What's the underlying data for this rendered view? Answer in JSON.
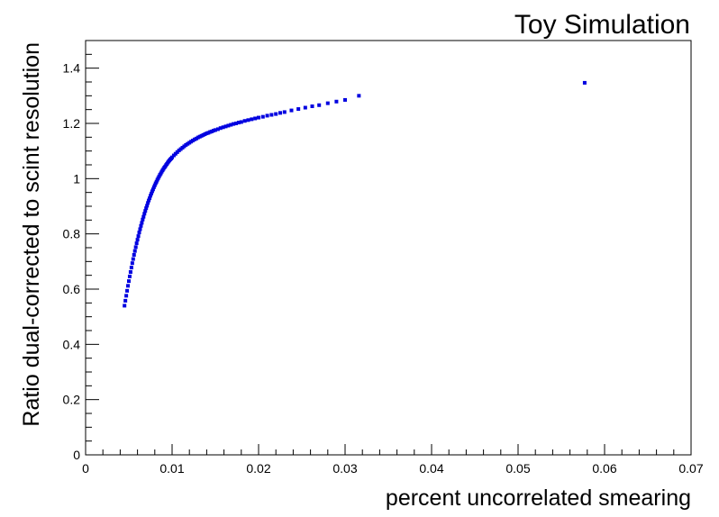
{
  "chart_data": {
    "type": "scatter",
    "title": "Toy Simulation",
    "xlabel": "percent uncorrelated smearing",
    "ylabel": "Ratio dual-corrected to scint resolution",
    "xlim": [
      0,
      0.07
    ],
    "ylim": [
      0,
      1.5
    ],
    "x_ticks": [
      0,
      0.01,
      0.02,
      0.03,
      0.04,
      0.05,
      0.06,
      0.07
    ],
    "x_tick_labels": [
      "0",
      "0.01",
      "0.02",
      "0.03",
      "0.04",
      "0.05",
      "0.06",
      "0.07"
    ],
    "y_ticks": [
      0,
      0.2,
      0.4,
      0.6,
      0.8,
      1.0,
      1.2,
      1.4
    ],
    "y_tick_labels": [
      "0",
      "0.2",
      "0.4",
      "0.6",
      "0.8",
      "1",
      "1.2",
      "1.4"
    ],
    "grid": false,
    "marker_color": "#0000e0",
    "series": [
      {
        "x": [
          0.0045,
          0.0046,
          0.0047,
          0.0048,
          0.0049,
          0.005,
          0.0051,
          0.0052,
          0.0053,
          0.0054,
          0.0055,
          0.0056,
          0.0057,
          0.0058,
          0.0059,
          0.006,
          0.0061,
          0.0062,
          0.0063,
          0.0064,
          0.0065,
          0.0066,
          0.0067,
          0.0068,
          0.0069,
          0.007,
          0.0071,
          0.0072,
          0.0073,
          0.0074,
          0.0075,
          0.0076,
          0.0077,
          0.0078,
          0.0079,
          0.008,
          0.0081,
          0.0082,
          0.0083,
          0.0084,
          0.0085,
          0.0086,
          0.0087,
          0.0088,
          0.0089,
          0.009,
          0.0091,
          0.0092,
          0.0093,
          0.0094,
          0.0095,
          0.0096,
          0.0097,
          0.0098,
          0.0099,
          0.01,
          0.0102,
          0.0104,
          0.0106,
          0.0108,
          0.011,
          0.0112,
          0.0114,
          0.0116,
          0.0118,
          0.012,
          0.0122,
          0.0124,
          0.0126,
          0.0128,
          0.013,
          0.0132,
          0.0134,
          0.0136,
          0.0138,
          0.014,
          0.0142,
          0.0144,
          0.0146,
          0.0148,
          0.015,
          0.0153,
          0.0156,
          0.0159,
          0.0162,
          0.0165,
          0.0168,
          0.0171,
          0.0174,
          0.0177,
          0.018,
          0.0184,
          0.0188,
          0.0192,
          0.0196,
          0.02,
          0.0205,
          0.021,
          0.0215,
          0.022,
          0.0225,
          0.023,
          0.0238,
          0.0246,
          0.0254,
          0.0262,
          0.027,
          0.028,
          0.029,
          0.03,
          0.0316,
          0.0577
        ],
        "y": [
          0.54,
          0.558,
          0.576,
          0.594,
          0.612,
          0.629,
          0.646,
          0.662,
          0.678,
          0.694,
          0.709,
          0.724,
          0.738,
          0.752,
          0.766,
          0.779,
          0.792,
          0.805,
          0.817,
          0.829,
          0.84,
          0.852,
          0.862,
          0.873,
          0.883,
          0.893,
          0.902,
          0.912,
          0.921,
          0.929,
          0.938,
          0.946,
          0.954,
          0.961,
          0.969,
          0.976,
          0.983,
          0.989,
          0.996,
          1.002,
          1.008,
          1.014,
          1.019,
          1.025,
          1.03,
          1.035,
          1.04,
          1.044,
          1.049,
          1.053,
          1.058,
          1.062,
          1.066,
          1.07,
          1.073,
          1.077,
          1.084,
          1.09,
          1.096,
          1.102,
          1.107,
          1.112,
          1.117,
          1.122,
          1.126,
          1.13,
          1.134,
          1.138,
          1.142,
          1.145,
          1.149,
          1.152,
          1.155,
          1.158,
          1.161,
          1.164,
          1.166,
          1.169,
          1.171,
          1.174,
          1.176,
          1.179,
          1.183,
          1.186,
          1.189,
          1.192,
          1.195,
          1.198,
          1.2,
          1.203,
          1.205,
          1.209,
          1.212,
          1.215,
          1.218,
          1.221,
          1.224,
          1.228,
          1.231,
          1.234,
          1.238,
          1.241,
          1.247,
          1.252,
          1.257,
          1.262,
          1.266,
          1.273,
          1.279,
          1.285,
          1.3,
          1.347
        ]
      }
    ]
  }
}
